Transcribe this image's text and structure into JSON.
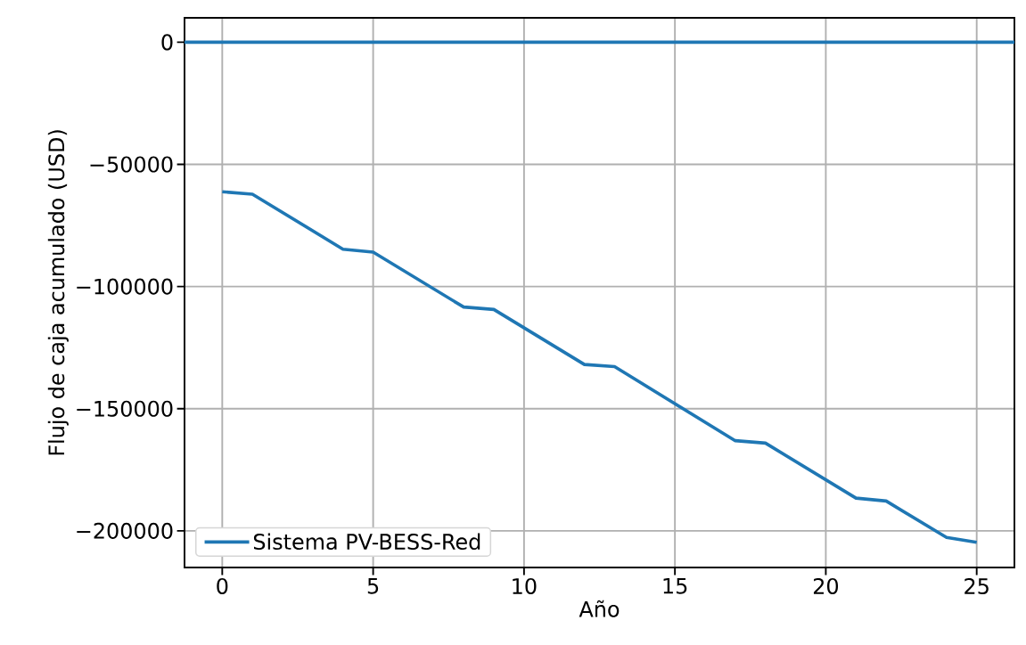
{
  "chart_data": {
    "type": "line",
    "xlabel": "Año",
    "ylabel": "Flujo de caja acumulado (USD)",
    "x": [
      0,
      1,
      4,
      5,
      8,
      9,
      12,
      13,
      17,
      18,
      21,
      22,
      24,
      25
    ],
    "series": [
      {
        "name": "Sistema PV-BESS-Red",
        "color": "#1f77b4",
        "values": [
          -61200,
          -62200,
          -84700,
          -85900,
          -108400,
          -109400,
          -131900,
          -132800,
          -163100,
          -164100,
          -186600,
          -187800,
          -202700,
          -204700
        ]
      }
    ],
    "xlim": [
      -1.25,
      26.25
    ],
    "ylim": [
      -215000,
      10000
    ],
    "xticks": [
      0,
      5,
      10,
      15,
      20,
      25
    ],
    "yticks": [
      {
        "value": -200000,
        "label": "−200000"
      },
      {
        "value": -150000,
        "label": "−150000"
      },
      {
        "value": -100000,
        "label": "−100000"
      },
      {
        "value": -50000,
        "label": "−50000"
      },
      0
    ],
    "ref_lines": [
      {
        "axis": "y",
        "value": 0,
        "color": "#1f77b4"
      }
    ],
    "grid": true,
    "legend": "bottom left",
    "line_style": "solid"
  }
}
